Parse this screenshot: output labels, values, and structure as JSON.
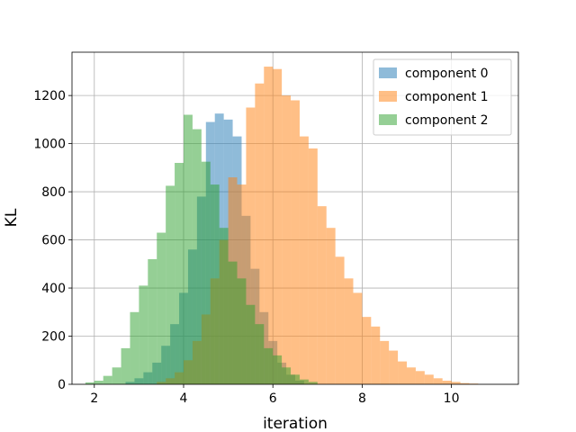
{
  "chart_data": {
    "type": "histogram",
    "xlabel": "iteration",
    "ylabel": "KL",
    "xlim": [
      1.5,
      11.5
    ],
    "ylim": [
      0,
      1380
    ],
    "xticks": [
      2,
      4,
      6,
      8,
      10
    ],
    "yticks": [
      0,
      200,
      400,
      600,
      800,
      1000,
      1200
    ],
    "grid": true,
    "legend_position": "top-right",
    "series": [
      {
        "name": "component 0",
        "color": "#1f77b4",
        "bins": [
          [
            2.7,
            2.9,
            10
          ],
          [
            2.9,
            3.1,
            25
          ],
          [
            3.1,
            3.3,
            50
          ],
          [
            3.3,
            3.5,
            90
          ],
          [
            3.5,
            3.7,
            160
          ],
          [
            3.7,
            3.9,
            250
          ],
          [
            3.9,
            4.1,
            380
          ],
          [
            4.1,
            4.3,
            560
          ],
          [
            4.3,
            4.5,
            780
          ],
          [
            4.5,
            4.7,
            1090
          ],
          [
            4.7,
            4.9,
            1125
          ],
          [
            4.9,
            5.1,
            1100
          ],
          [
            5.1,
            5.3,
            1030
          ],
          [
            5.3,
            5.5,
            700
          ],
          [
            5.5,
            5.7,
            480
          ],
          [
            5.7,
            5.9,
            300
          ],
          [
            5.9,
            6.1,
            180
          ],
          [
            6.1,
            6.3,
            90
          ],
          [
            6.3,
            6.5,
            40
          ],
          [
            6.5,
            6.7,
            15
          ]
        ]
      },
      {
        "name": "component 1",
        "color": "#ff7f0e",
        "bins": [
          [
            3.4,
            3.6,
            10
          ],
          [
            3.6,
            3.8,
            25
          ],
          [
            3.8,
            4.0,
            50
          ],
          [
            4.0,
            4.2,
            100
          ],
          [
            4.2,
            4.4,
            180
          ],
          [
            4.4,
            4.6,
            290
          ],
          [
            4.6,
            4.8,
            440
          ],
          [
            4.8,
            5.0,
            600
          ],
          [
            5.0,
            5.2,
            860
          ],
          [
            5.2,
            5.4,
            830
          ],
          [
            5.4,
            5.6,
            1150
          ],
          [
            5.6,
            5.8,
            1250
          ],
          [
            5.8,
            6.0,
            1320
          ],
          [
            6.0,
            6.2,
            1310
          ],
          [
            6.2,
            6.4,
            1200
          ],
          [
            6.4,
            6.6,
            1180
          ],
          [
            6.6,
            6.8,
            1030
          ],
          [
            6.8,
            7.0,
            980
          ],
          [
            7.0,
            7.2,
            740
          ],
          [
            7.2,
            7.4,
            650
          ],
          [
            7.4,
            7.6,
            530
          ],
          [
            7.6,
            7.8,
            440
          ],
          [
            7.8,
            8.0,
            380
          ],
          [
            8.0,
            8.2,
            280
          ],
          [
            8.2,
            8.4,
            240
          ],
          [
            8.4,
            8.6,
            180
          ],
          [
            8.6,
            8.8,
            140
          ],
          [
            8.8,
            9.0,
            95
          ],
          [
            9.0,
            9.2,
            70
          ],
          [
            9.2,
            9.4,
            55
          ],
          [
            9.4,
            9.6,
            40
          ],
          [
            9.6,
            9.8,
            25
          ],
          [
            9.8,
            10.0,
            15
          ],
          [
            10.0,
            10.2,
            10
          ],
          [
            10.2,
            10.4,
            5
          ],
          [
            10.4,
            10.6,
            3
          ]
        ]
      },
      {
        "name": "component 2",
        "color": "#2ca02c",
        "bins": [
          [
            1.8,
            2.0,
            8
          ],
          [
            2.0,
            2.2,
            15
          ],
          [
            2.2,
            2.4,
            35
          ],
          [
            2.4,
            2.6,
            70
          ],
          [
            2.6,
            2.8,
            150
          ],
          [
            2.8,
            3.0,
            300
          ],
          [
            3.0,
            3.2,
            410
          ],
          [
            3.2,
            3.4,
            520
          ],
          [
            3.4,
            3.6,
            630
          ],
          [
            3.6,
            3.8,
            825
          ],
          [
            3.8,
            4.0,
            920
          ],
          [
            4.0,
            4.2,
            1120
          ],
          [
            4.2,
            4.4,
            1060
          ],
          [
            4.4,
            4.6,
            925
          ],
          [
            4.6,
            4.8,
            830
          ],
          [
            4.8,
            5.0,
            650
          ],
          [
            5.0,
            5.2,
            510
          ],
          [
            5.2,
            5.4,
            440
          ],
          [
            5.4,
            5.6,
            330
          ],
          [
            5.6,
            5.8,
            250
          ],
          [
            5.8,
            6.0,
            150
          ],
          [
            6.0,
            6.2,
            120
          ],
          [
            6.2,
            6.4,
            70
          ],
          [
            6.4,
            6.6,
            40
          ],
          [
            6.6,
            6.8,
            20
          ],
          [
            6.8,
            7.0,
            10
          ]
        ]
      }
    ]
  }
}
